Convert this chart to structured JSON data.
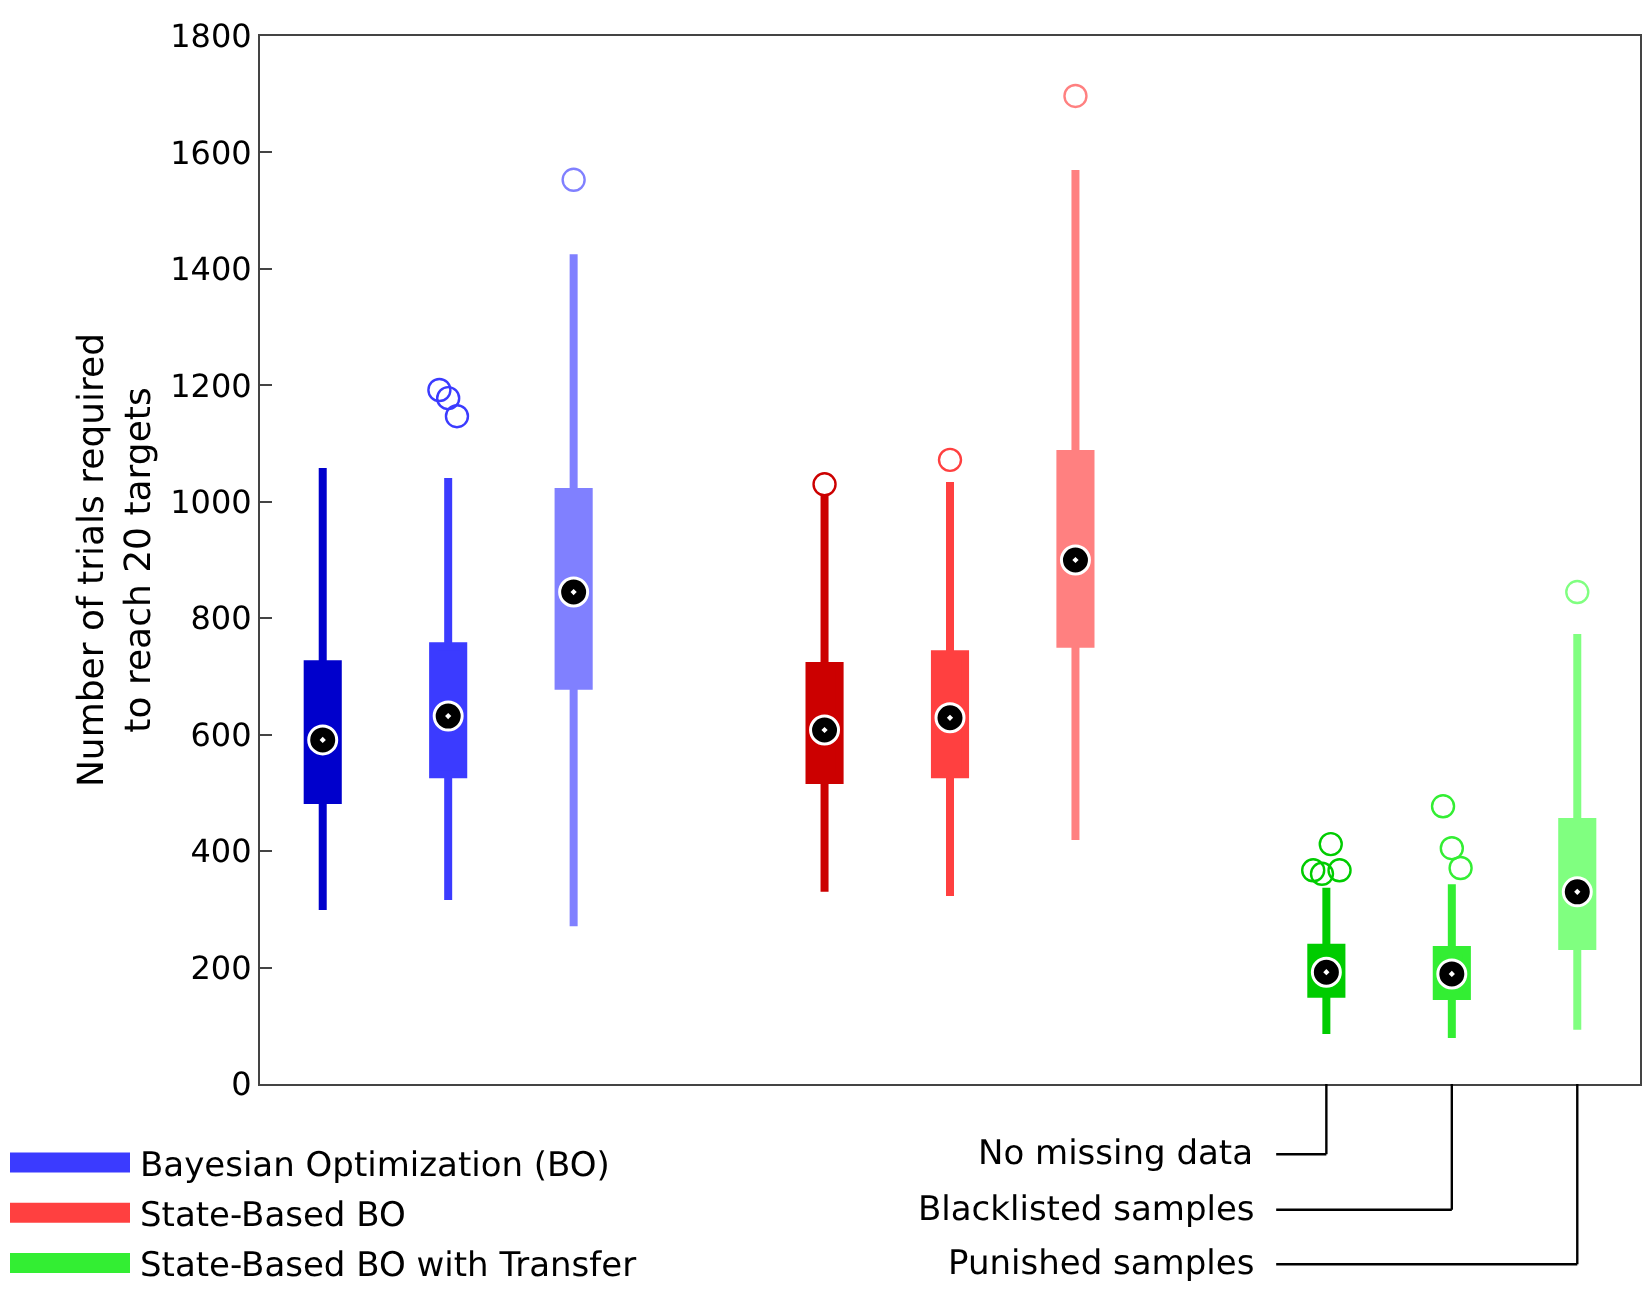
{
  "chart_data": {
    "type": "box",
    "ylabel": "Number of trials required\nto reach 20 targets",
    "categories": [
      null,
      null,
      null,
      null,
      null,
      null,
      null,
      null,
      null,
      null,
      null
    ],
    "ylim": [
      0,
      1800
    ],
    "yticks": [
      0,
      200,
      400,
      600,
      800,
      1000,
      1200,
      1400,
      1600,
      1800
    ],
    "legend": "bottom left",
    "series": [
      {
        "name": "Bayesian Optimization (BO)",
        "color": "#3b3bff",
        "colors": [
          "#0000cc",
          "#3b3bff",
          "#8080ff",
          null,
          null,
          null,
          null,
          null,
          null,
          null,
          null
        ],
        "boxes": [
          {
            "low": 299,
            "q1": 488,
            "median": 591,
            "q3": 721,
            "high": 1058
          },
          {
            "low": 316,
            "q1": 532,
            "median": 632,
            "q3": 752,
            "high": 1041,
            "outliers": [
              1192,
              1178,
              1147
            ]
          },
          {
            "low": 271,
            "q1": 684,
            "median": 845,
            "q3": 1017,
            "high": 1425,
            "outliers": [
              1553
            ]
          },
          null,
          null,
          null,
          null,
          null,
          null,
          null,
          null
        ]
      },
      {
        "name": "State-Based BO",
        "color": "#ff4040",
        "colors": [
          null,
          null,
          null,
          null,
          "#cc0000",
          "#ff4040",
          "#ff8080",
          null,
          null,
          null,
          null
        ],
        "boxes": [
          null,
          null,
          null,
          null,
          {
            "low": 330,
            "q1": 522,
            "median": 608,
            "q3": 718,
            "high": 1013,
            "outliers": [
              1030
            ]
          },
          {
            "low": 323,
            "q1": 532,
            "median": 629,
            "q3": 738,
            "high": 1034,
            "outliers": [
              1072
            ]
          },
          {
            "low": 419,
            "q1": 756,
            "median": 900,
            "q3": 1082,
            "high": 1570,
            "outliers": [
              1697
            ]
          },
          null,
          null,
          null,
          null
        ]
      },
      {
        "name": "State-Based BO with Transfer",
        "color": "#33ee33",
        "colors": [
          null,
          null,
          null,
          null,
          null,
          null,
          null,
          null,
          "#00cc00",
          "#33ee33",
          "#80ff80"
        ],
        "boxes": [
          null,
          null,
          null,
          null,
          null,
          null,
          null,
          null,
          {
            "low": 86,
            "q1": 155,
            "median": 192,
            "q3": 234,
            "high": 337,
            "outliers": [
              367,
              361,
              412,
              367
            ]
          },
          {
            "low": 79,
            "q1": 151,
            "median": 189,
            "q3": 230,
            "high": 343,
            "outliers": [
              477,
              405,
              371
            ]
          },
          {
            "low": 93,
            "q1": 237,
            "median": 330,
            "q3": 450,
            "high": 773,
            "outliers": [
              845
            ]
          }
        ]
      }
    ],
    "annotations": [
      "No missing data",
      "Blacklisted samples",
      "Punished samples"
    ]
  }
}
